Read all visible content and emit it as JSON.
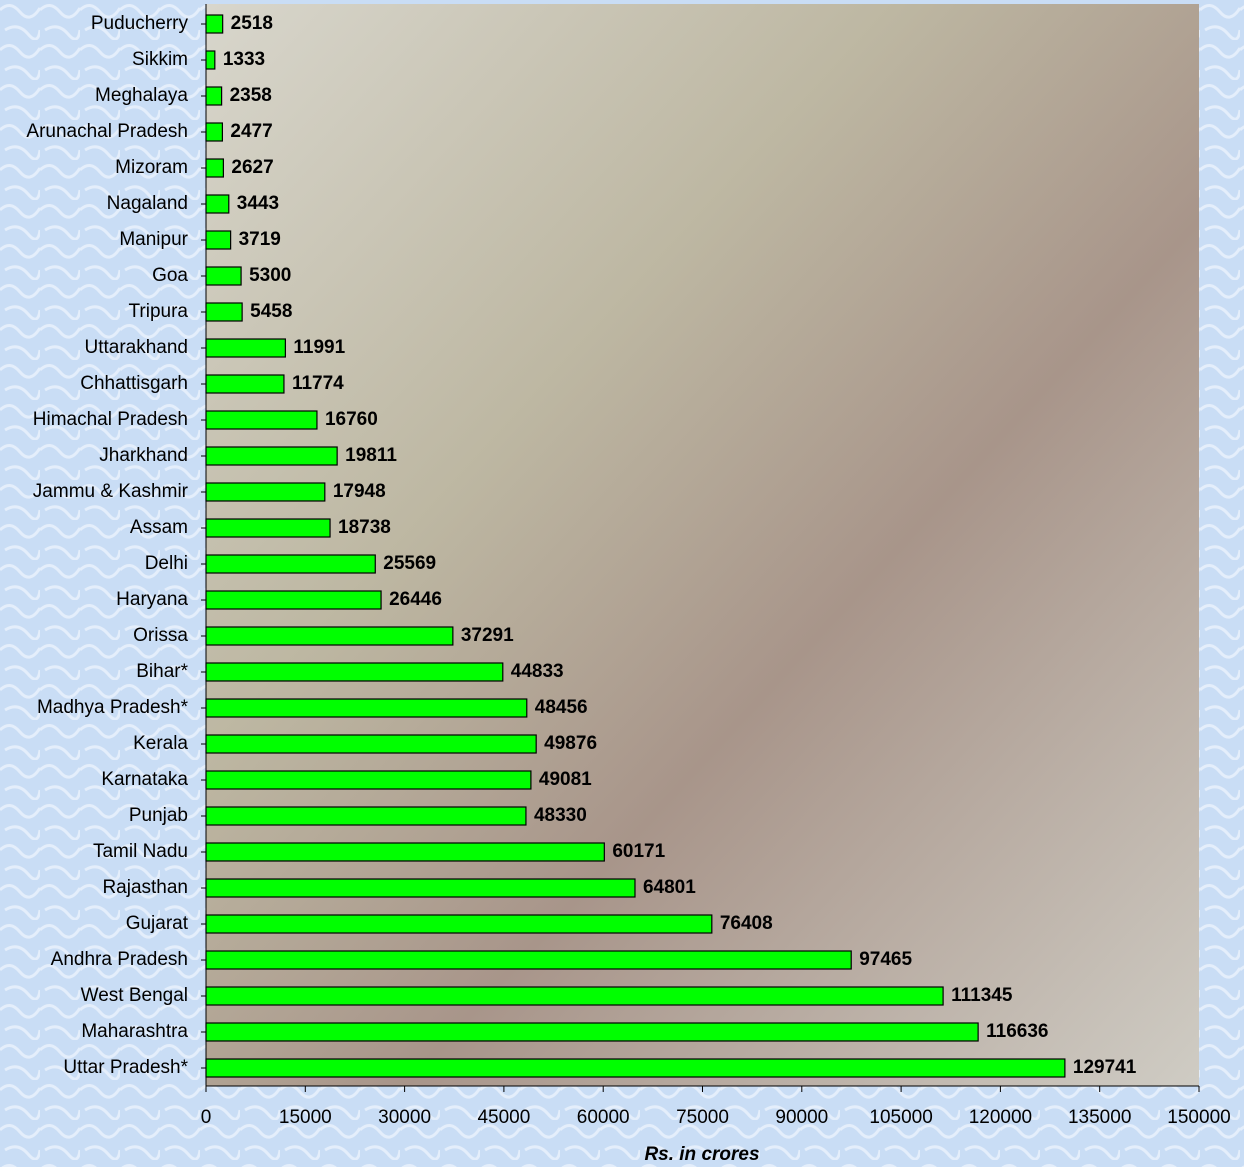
{
  "chart_data": {
    "type": "bar",
    "orientation": "horizontal",
    "x_label": "Rs. in crores",
    "categories": [
      "Puducherry",
      "Sikkim",
      "Meghalaya",
      "Arunachal Pradesh",
      "Mizoram",
      "Nagaland",
      "Manipur",
      "Goa",
      "Tripura",
      "Uttarakhand",
      "Chhattisgarh",
      "Himachal Pradesh",
      "Jharkhand",
      "Jammu & Kashmir",
      "Assam",
      "Delhi",
      "Haryana",
      "Orissa",
      "Bihar*",
      "Madhya Pradesh*",
      "Kerala",
      "Karnataka",
      "Punjab",
      "Tamil Nadu",
      "Rajasthan",
      "Gujarat",
      "Andhra Pradesh",
      "West Bengal",
      "Maharashtra",
      "Uttar Pradesh*"
    ],
    "values": [
      2518,
      1333,
      2358,
      2477,
      2627,
      3443,
      3719,
      5300,
      5458,
      11991,
      11774,
      16760,
      19811,
      17948,
      18738,
      25569,
      26446,
      37291,
      44833,
      48456,
      49876,
      49081,
      48330,
      60171,
      64801,
      76408,
      97465,
      111345,
      116636,
      129741
    ],
    "color": "#00ff00",
    "value_label_color": "#ff0000",
    "xlim": [
      0,
      150000
    ],
    "xticks": [
      0,
      15000,
      30000,
      45000,
      60000,
      75000,
      90000,
      105000,
      120000,
      135000,
      150000
    ]
  }
}
